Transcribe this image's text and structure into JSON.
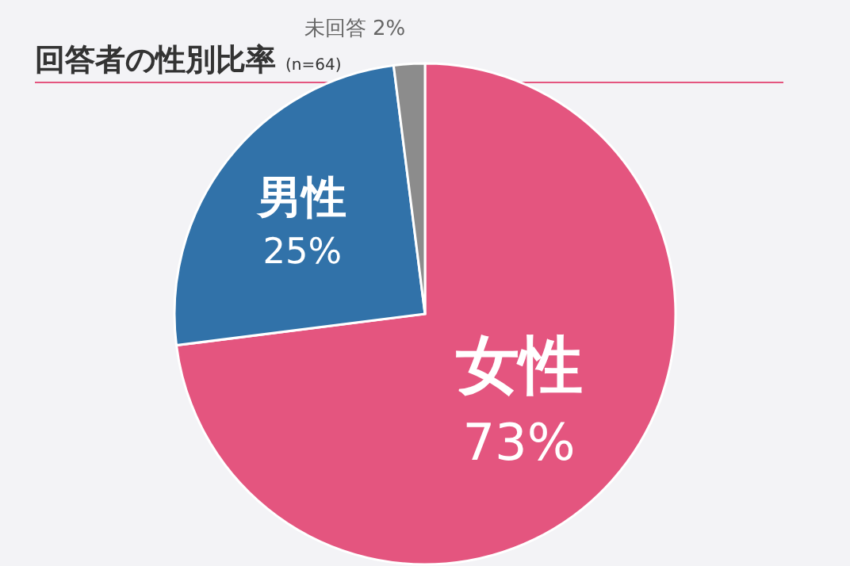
{
  "chart_data": {
    "type": "pie",
    "title": "回答者の性別比率",
    "subtitle": "(n=64)",
    "categories": [
      "女性",
      "男性",
      "未回答"
    ],
    "values": [
      73,
      25,
      2
    ],
    "colors": [
      "#e4557f",
      "#3172a9",
      "#8c8c8c"
    ],
    "value_labels": [
      "73%",
      "25%",
      "2%"
    ],
    "legend": false
  }
}
